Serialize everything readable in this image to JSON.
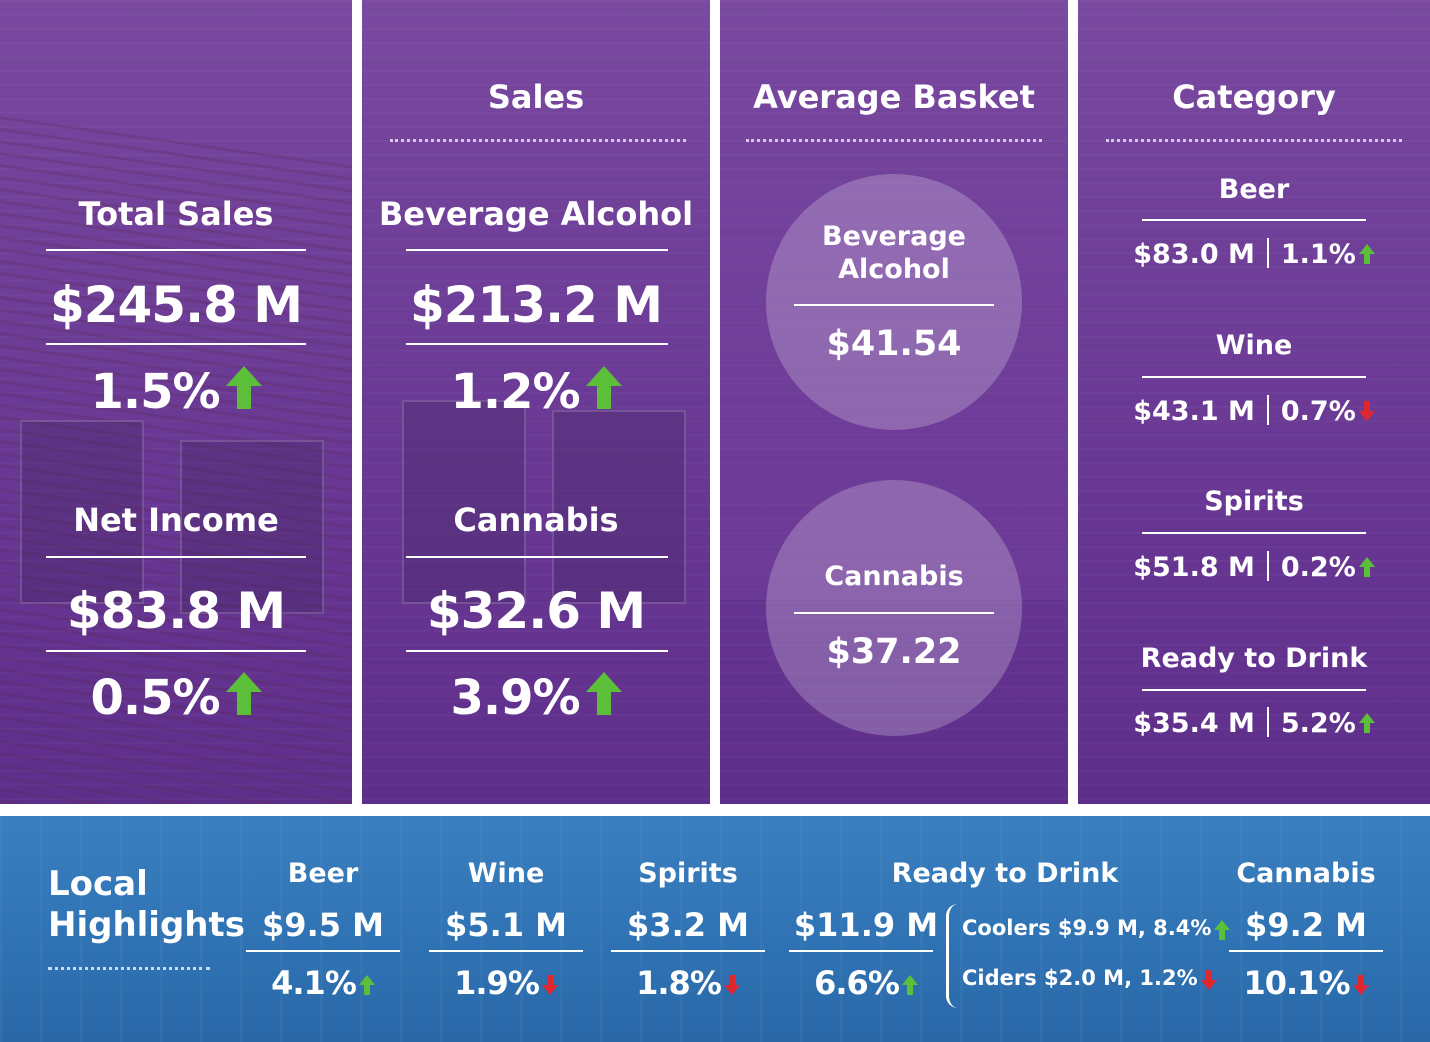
{
  "colors": {
    "purple": "#6e3e98",
    "blue": "#2f73b4",
    "up": "#5cbf3a",
    "down": "#e0262e"
  },
  "col1": {
    "total_sales": {
      "label": "Total Sales",
      "value": "$245.8 M",
      "change": "1.5%",
      "direction": "up"
    },
    "net_income": {
      "label": "Net Income",
      "value": "$83.8 M",
      "change": "0.5%",
      "direction": "up"
    }
  },
  "col2": {
    "title": "Sales",
    "beverage_alcohol": {
      "label": "Beverage Alcohol",
      "value": "$213.2 M",
      "change": "1.2%",
      "direction": "up"
    },
    "cannabis": {
      "label": "Cannabis",
      "value": "$32.6 M",
      "change": "3.9%",
      "direction": "up"
    }
  },
  "col3": {
    "title": "Average Basket",
    "beverage_alcohol": {
      "label_line1": "Beverage",
      "label_line2": "Alcohol",
      "value": "$41.54"
    },
    "cannabis": {
      "label": "Cannabis",
      "value": "$37.22"
    }
  },
  "col4": {
    "title": "Category",
    "items": [
      {
        "name": "Beer",
        "value": "$83.0 M",
        "change": "1.1%",
        "direction": "up"
      },
      {
        "name": "Wine",
        "value": "$43.1 M",
        "change": "0.7%",
        "direction": "down"
      },
      {
        "name": "Spirits",
        "value": "$51.8 M",
        "change": "0.2%",
        "direction": "up"
      },
      {
        "name": "Ready to Drink",
        "value": "$35.4 M",
        "change": "5.2%",
        "direction": "up"
      }
    ]
  },
  "local": {
    "title_line1": "Local",
    "title_line2": "Highlights",
    "beer": {
      "label": "Beer",
      "value": "$9.5 M",
      "change": "4.1%",
      "direction": "up"
    },
    "wine": {
      "label": "Wine",
      "value": "$5.1 M",
      "change": "1.9%",
      "direction": "down"
    },
    "spirits": {
      "label": "Spirits",
      "value": "$3.2 M",
      "change": "1.8%",
      "direction": "down"
    },
    "rtd": {
      "label": "Ready to Drink",
      "value": "$11.9 M",
      "change": "6.6%",
      "direction": "up",
      "coolers": "Coolers $9.9 M, 8.4%",
      "coolers_direction": "up",
      "ciders": "Ciders $2.0 M, 1.2%",
      "ciders_direction": "down"
    },
    "cannabis": {
      "label": "Cannabis",
      "value": "$9.2 M",
      "change": "10.1%",
      "direction": "down"
    }
  }
}
